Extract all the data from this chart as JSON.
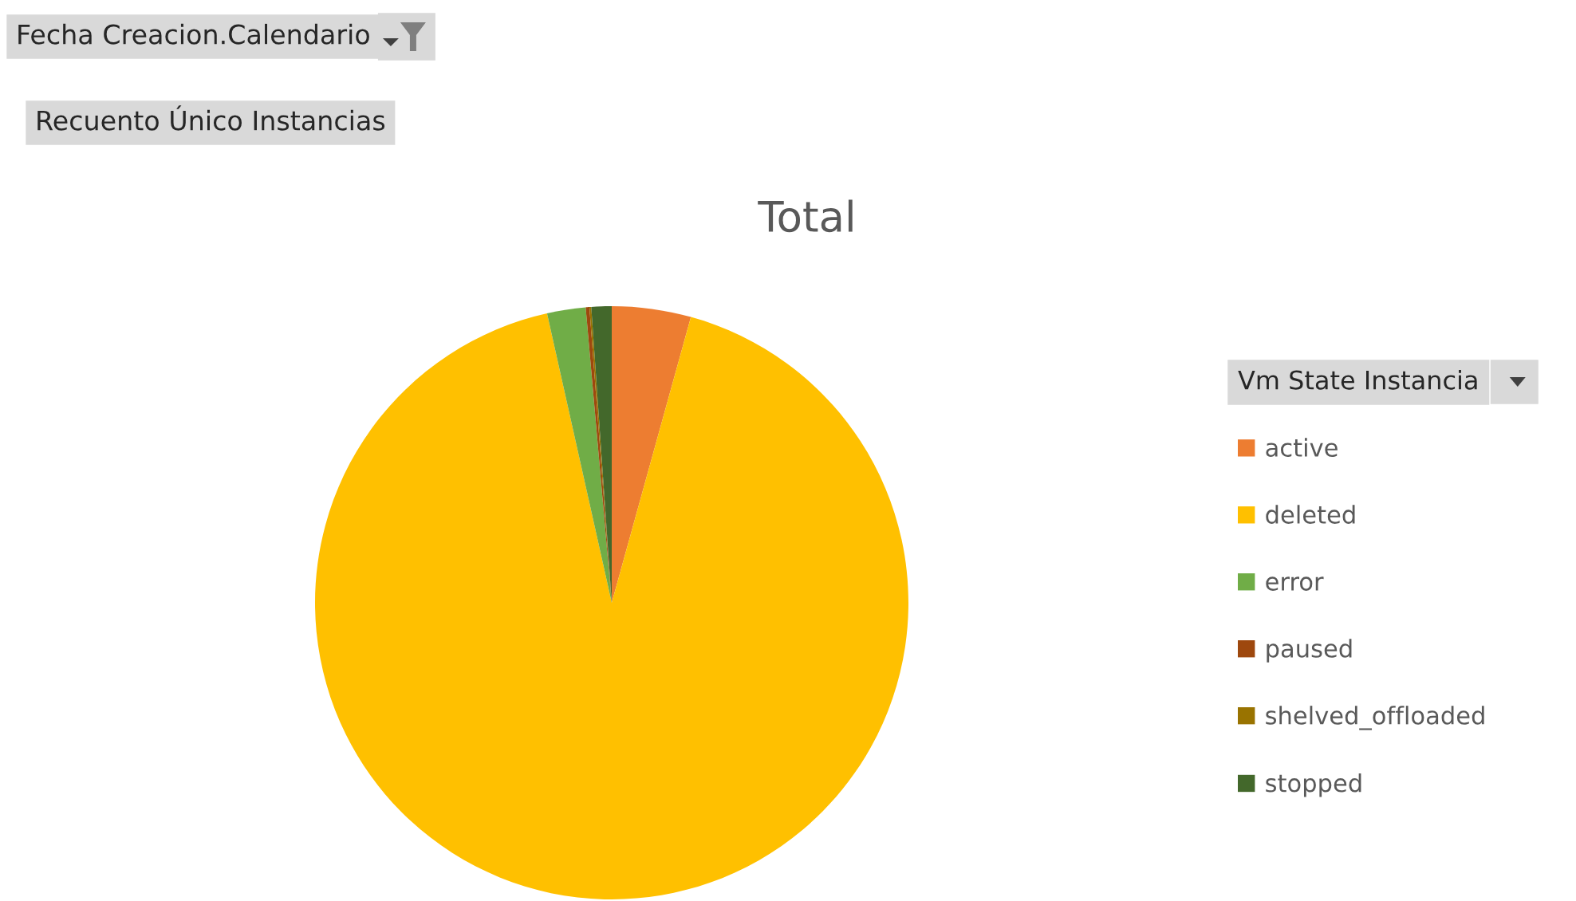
{
  "chart_data": {
    "type": "pie",
    "title": "Total",
    "categories": [
      "active",
      "deleted",
      "error",
      "paused",
      "shelved_offloaded",
      "stopped"
    ],
    "values": [
      4.3,
      92.2,
      2.1,
      0.2,
      0.1,
      1.1
    ],
    "colors": [
      "#ed7d31",
      "#ffc000",
      "#70ad47",
      "#9e480e",
      "#997300",
      "#43682b"
    ],
    "legend_title": "Vm State Instancia",
    "legend": "right",
    "annotations": [
      "Fecha Creacion.Calendario",
      "Recuento Único Instancias"
    ]
  }
}
